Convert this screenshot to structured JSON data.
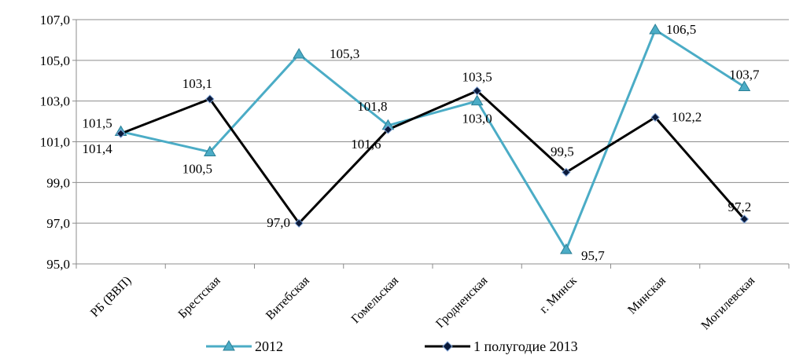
{
  "chart_data": {
    "type": "line",
    "title": "",
    "xlabel": "",
    "ylabel": "",
    "categories": [
      "РБ (ВВП)",
      "Брестская",
      "Витебская",
      "Гомельская",
      "Гродненская",
      "г. Минск",
      "Минская",
      "Могилевская"
    ],
    "ylim": [
      95.0,
      107.0
    ],
    "yticks": [
      "95,0",
      "97,0",
      "99,0",
      "101,0",
      "103,0",
      "105,0",
      "107,0"
    ],
    "grid": "horizontal",
    "legend_position": "bottom",
    "series": [
      {
        "name": "2012",
        "color": "#4bacc6",
        "marker": "triangle",
        "values": [
          101.5,
          100.5,
          105.3,
          101.8,
          103.0,
          95.7,
          106.5,
          103.7
        ],
        "labels": [
          "101,5",
          "100,5",
          "105,3",
          "101,8",
          "103,0",
          "95,7",
          "106,5",
          "103,7"
        ]
      },
      {
        "name": "1 полугодие 2013",
        "color": "#000000",
        "marker": "diamond",
        "values": [
          101.4,
          103.1,
          97.0,
          101.6,
          103.5,
          99.5,
          102.2,
          97.2
        ],
        "labels": [
          "101,4",
          "103,1",
          "97,0",
          "101,6",
          "103,5",
          "99,5",
          "102,2",
          "97,2"
        ]
      }
    ]
  }
}
